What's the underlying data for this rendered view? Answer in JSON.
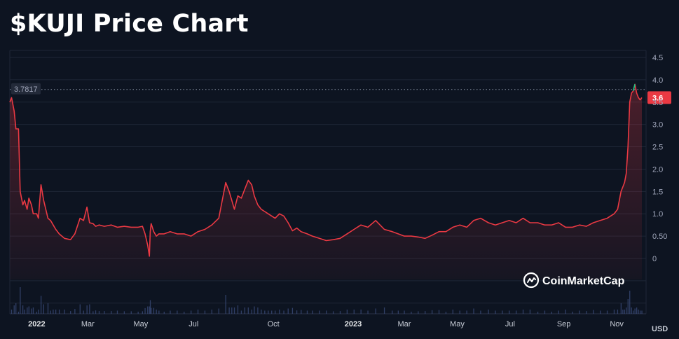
{
  "title": "$KUJI Price Chart",
  "brand": "CoinMarketCap",
  "currency": "USD",
  "colors": {
    "background": "#0d1421",
    "line": "#ea3943",
    "up_tick": "#16c784",
    "grid": "#1e2636",
    "volume": "#3a4a78"
  },
  "chart_data": {
    "type": "area",
    "title": "$KUJI Price Chart",
    "xlabel": "",
    "ylabel": "",
    "unit": "USD",
    "ylim": [
      0,
      4.5
    ],
    "yticks": [
      "0",
      "0.50",
      "1.0",
      "1.5",
      "2.0",
      "2.5",
      "3.0",
      "3.5",
      "4.0",
      "4.5"
    ],
    "grid": true,
    "xticks": [
      {
        "label": "2022",
        "date": "2022-01-01",
        "year": true
      },
      {
        "label": "Mar",
        "date": "2022-03-01"
      },
      {
        "label": "May",
        "date": "2022-05-01"
      },
      {
        "label": "Jul",
        "date": "2022-07-01"
      },
      {
        "label": "Oct",
        "date": "2022-10-01"
      },
      {
        "label": "2023",
        "date": "2023-01-01",
        "year": true
      },
      {
        "label": "Mar",
        "date": "2023-03-01"
      },
      {
        "label": "May",
        "date": "2023-05-01"
      },
      {
        "label": "Jul",
        "date": "2023-07-01"
      },
      {
        "label": "Sep",
        "date": "2023-09-01"
      },
      {
        "label": "Nov",
        "date": "2023-11-01"
      }
    ],
    "reference_line": {
      "value": 3.7817,
      "label": "3.7817"
    },
    "current_price": {
      "value": 3.6,
      "label": "3.6"
    },
    "series": [
      {
        "x": [
          "2021-12-01",
          "2021-12-03",
          "2021-12-06",
          "2021-12-08",
          "2021-12-11",
          "2021-12-13",
          "2021-12-16",
          "2021-12-18",
          "2021-12-21",
          "2021-12-23",
          "2021-12-26",
          "2021-12-28",
          "2022-01-01",
          "2022-01-03",
          "2022-01-06",
          "2022-01-09",
          "2022-01-14",
          "2022-01-17",
          "2022-01-20",
          "2022-01-23",
          "2022-01-27",
          "2022-02-02",
          "2022-02-09",
          "2022-02-14",
          "2022-02-20",
          "2022-02-24",
          "2022-02-28",
          "2022-03-03",
          "2022-03-07",
          "2022-03-10",
          "2022-03-14",
          "2022-03-20",
          "2022-03-28",
          "2022-04-04",
          "2022-04-12",
          "2022-04-20",
          "2022-04-28",
          "2022-05-03",
          "2022-05-06",
          "2022-05-09",
          "2022-05-11",
          "2022-05-12",
          "2022-05-13",
          "2022-05-16",
          "2022-05-19",
          "2022-05-22",
          "2022-05-28",
          "2022-06-04",
          "2022-06-12",
          "2022-06-20",
          "2022-06-28",
          "2022-07-06",
          "2022-07-14",
          "2022-07-22",
          "2022-07-30",
          "2022-08-07",
          "2022-08-11",
          "2022-08-14",
          "2022-08-17",
          "2022-08-21",
          "2022-08-25",
          "2022-08-29",
          "2022-09-02",
          "2022-09-06",
          "2022-09-09",
          "2022-09-13",
          "2022-09-17",
          "2022-09-21",
          "2022-09-25",
          "2022-09-29",
          "2022-10-03",
          "2022-10-08",
          "2022-10-13",
          "2022-10-18",
          "2022-10-23",
          "2022-10-28",
          "2022-11-02",
          "2022-11-09",
          "2022-11-15",
          "2022-11-23",
          "2022-12-01",
          "2022-12-09",
          "2022-12-17",
          "2022-12-25",
          "2023-01-02",
          "2023-01-10",
          "2023-01-18",
          "2023-01-27",
          "2023-02-06",
          "2023-02-15",
          "2023-02-22",
          "2023-03-01",
          "2023-03-09",
          "2023-03-17",
          "2023-03-25",
          "2023-04-02",
          "2023-04-10",
          "2023-04-18",
          "2023-04-26",
          "2023-05-04",
          "2023-05-12",
          "2023-05-20",
          "2023-05-28",
          "2023-06-06",
          "2023-06-14",
          "2023-06-22",
          "2023-06-30",
          "2023-07-08",
          "2023-07-16",
          "2023-07-24",
          "2023-08-02",
          "2023-08-10",
          "2023-08-18",
          "2023-08-26",
          "2023-09-03",
          "2023-09-11",
          "2023-09-19",
          "2023-09-27",
          "2023-10-05",
          "2023-10-13",
          "2023-10-21",
          "2023-10-29",
          "2023-11-02",
          "2023-11-06",
          "2023-11-08",
          "2023-11-10",
          "2023-11-12",
          "2023-11-14",
          "2023-11-16",
          "2023-11-18",
          "2023-11-20",
          "2023-11-22",
          "2023-11-24",
          "2023-11-26",
          "2023-11-28",
          "2023-11-30"
        ],
        "y": [
          3.5,
          3.6,
          3.3,
          2.9,
          2.9,
          1.5,
          1.2,
          1.3,
          1.1,
          1.35,
          1.2,
          1.0,
          1.0,
          0.9,
          1.65,
          1.3,
          0.9,
          0.85,
          0.75,
          0.65,
          0.55,
          0.45,
          0.42,
          0.55,
          0.9,
          0.85,
          1.15,
          0.8,
          0.78,
          0.72,
          0.75,
          0.72,
          0.75,
          0.7,
          0.72,
          0.7,
          0.7,
          0.72,
          0.55,
          0.3,
          0.05,
          0.6,
          0.78,
          0.6,
          0.5,
          0.55,
          0.55,
          0.6,
          0.55,
          0.55,
          0.5,
          0.6,
          0.65,
          0.75,
          0.9,
          1.7,
          1.5,
          1.3,
          1.1,
          1.4,
          1.35,
          1.55,
          1.75,
          1.65,
          1.4,
          1.2,
          1.1,
          1.05,
          1.0,
          0.95,
          0.9,
          1.0,
          0.95,
          0.8,
          0.62,
          0.68,
          0.6,
          0.55,
          0.5,
          0.45,
          0.4,
          0.42,
          0.45,
          0.55,
          0.65,
          0.75,
          0.7,
          0.85,
          0.65,
          0.6,
          0.55,
          0.5,
          0.5,
          0.48,
          0.45,
          0.52,
          0.6,
          0.6,
          0.7,
          0.75,
          0.7,
          0.85,
          0.9,
          0.8,
          0.75,
          0.8,
          0.85,
          0.8,
          0.9,
          0.8,
          0.8,
          0.75,
          0.75,
          0.8,
          0.7,
          0.7,
          0.75,
          0.72,
          0.8,
          0.85,
          0.9,
          1.0,
          1.1,
          1.5,
          1.6,
          1.7,
          1.9,
          2.5,
          3.5,
          3.7,
          3.75,
          3.9,
          3.7,
          3.6,
          3.55,
          3.6
        ]
      }
    ]
  }
}
